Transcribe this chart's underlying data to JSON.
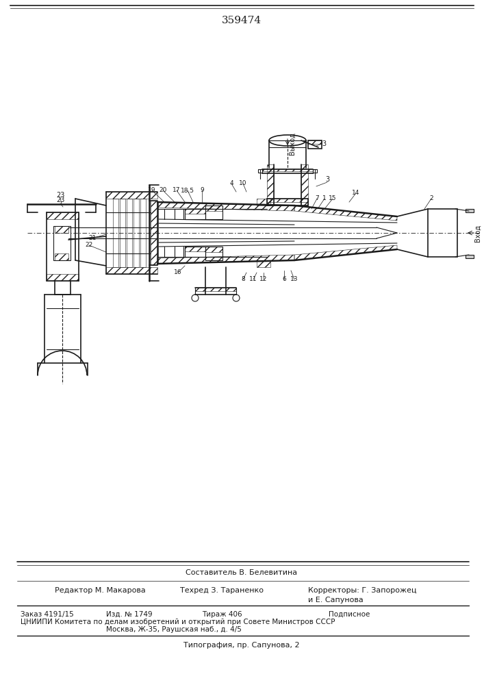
{
  "bg_color": "#f5f5f0",
  "line_color": "#1a1a1a",
  "patent_number": "359474",
  "composer": "Составитель В. Белевитина",
  "editor": "Редактор М. Макарова",
  "techred": "Техред З. Тараненко",
  "correctors": "Корректоры: Г. Запорожец",
  "correctors2": "и Е. Сапунова",
  "order": "Заказ 4191/15",
  "izd": "Изд. № 1749",
  "tirazh": "Тираж 406",
  "podpisnoe": "Подписное",
  "cniipи": "ЦНИИПИ Комитета по делам изобретений и открытий при Совете Министров СССР",
  "moscow": "Москва, Ж-35, Раушская наб., д. 4/5",
  "tipografia": "Типография, пр. Сапунова, 2",
  "vyhod": "Выход",
  "vhod": "Вход",
  "figsize": [
    7.07,
    10.0
  ],
  "dpi": 100
}
